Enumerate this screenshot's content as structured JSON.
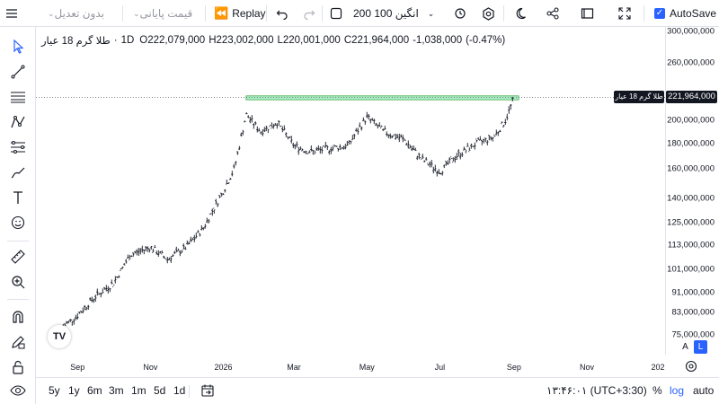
{
  "toolbar": {
    "adjustment": "بدون تعدیل",
    "price_type": "قیمت پایانی",
    "replay": "Replay",
    "indicator_text": "انگین 100 200",
    "autosave": "AutoSave"
  },
  "legend": {
    "symbol": "طلا گرم 18 عیار",
    "interval": "1D",
    "open_label": "O",
    "open": "222,079,000",
    "high_label": "H",
    "high": "223,002,000",
    "low_label": "L",
    "low": "220,001,000",
    "close_label": "C",
    "close": "221,964,000",
    "change": "-1,038,000",
    "change_pct": "(-0.47%)"
  },
  "price_axis": {
    "labels": [
      "300,000,000",
      "260,000,000",
      "200,000,000",
      "180,000,000",
      "160,000,000",
      "140,000,000",
      "125,000,000",
      "113,000,000",
      "101,000,000",
      "91,000,000",
      "83,000,000",
      "75,000,000"
    ],
    "current_price": "221,964,000",
    "symbol_tag": "طلا گرم 18 عیار"
  },
  "time_axis": {
    "labels": [
      "Sep",
      "Nov",
      "2026",
      "Mar",
      "May",
      "Jul",
      "Sep",
      "Nov",
      "202"
    ]
  },
  "bottom": {
    "ranges": [
      "5y",
      "1y",
      "6m",
      "3m",
      "1m",
      "5d",
      "1d"
    ],
    "clock": "۱۳:۴۶:۰۱ (UTC+3:30)",
    "percent": "%",
    "log": "log",
    "auto": "auto"
  },
  "scale": {
    "a": "A",
    "l": "L"
  },
  "logo": "TV",
  "colors": {
    "accent": "#2962ff",
    "zone": "#00c853"
  },
  "chart_data": {
    "type": "bar",
    "title": "",
    "ylim": [
      75000000,
      300000000
    ],
    "y_scale": "log",
    "series": [
      {
        "x": [
          "2025-08-20",
          "2025-09-01",
          "2025-09-15",
          "2025-10-01",
          "2025-10-15",
          "2025-11-01",
          "2025-11-15",
          "2025-12-01",
          "2025-12-15",
          "2026-01-01",
          "2026-01-10",
          "2026-01-20",
          "2026-02-01",
          "2026-02-15",
          "2026-03-01",
          "2026-03-15",
          "2026-04-01",
          "2026-04-15",
          "2026-05-01",
          "2026-05-15",
          "2026-06-01",
          "2026-06-15",
          "2026-07-01",
          "2026-07-15",
          "2026-08-01",
          "2026-08-15",
          "2026-08-25",
          "2026-09-01"
        ],
        "close": [
          78000000,
          82000000,
          89000000,
          95000000,
          108000000,
          112000000,
          106000000,
          112000000,
          122000000,
          145000000,
          160000000,
          205000000,
          190000000,
          198000000,
          178000000,
          173000000,
          176000000,
          178000000,
          203000000,
          190000000,
          183000000,
          168000000,
          158000000,
          170000000,
          180000000,
          185000000,
          200000000,
          221964000
        ]
      }
    ],
    "zone": {
      "low": 219500000,
      "high": 223500000
    }
  }
}
